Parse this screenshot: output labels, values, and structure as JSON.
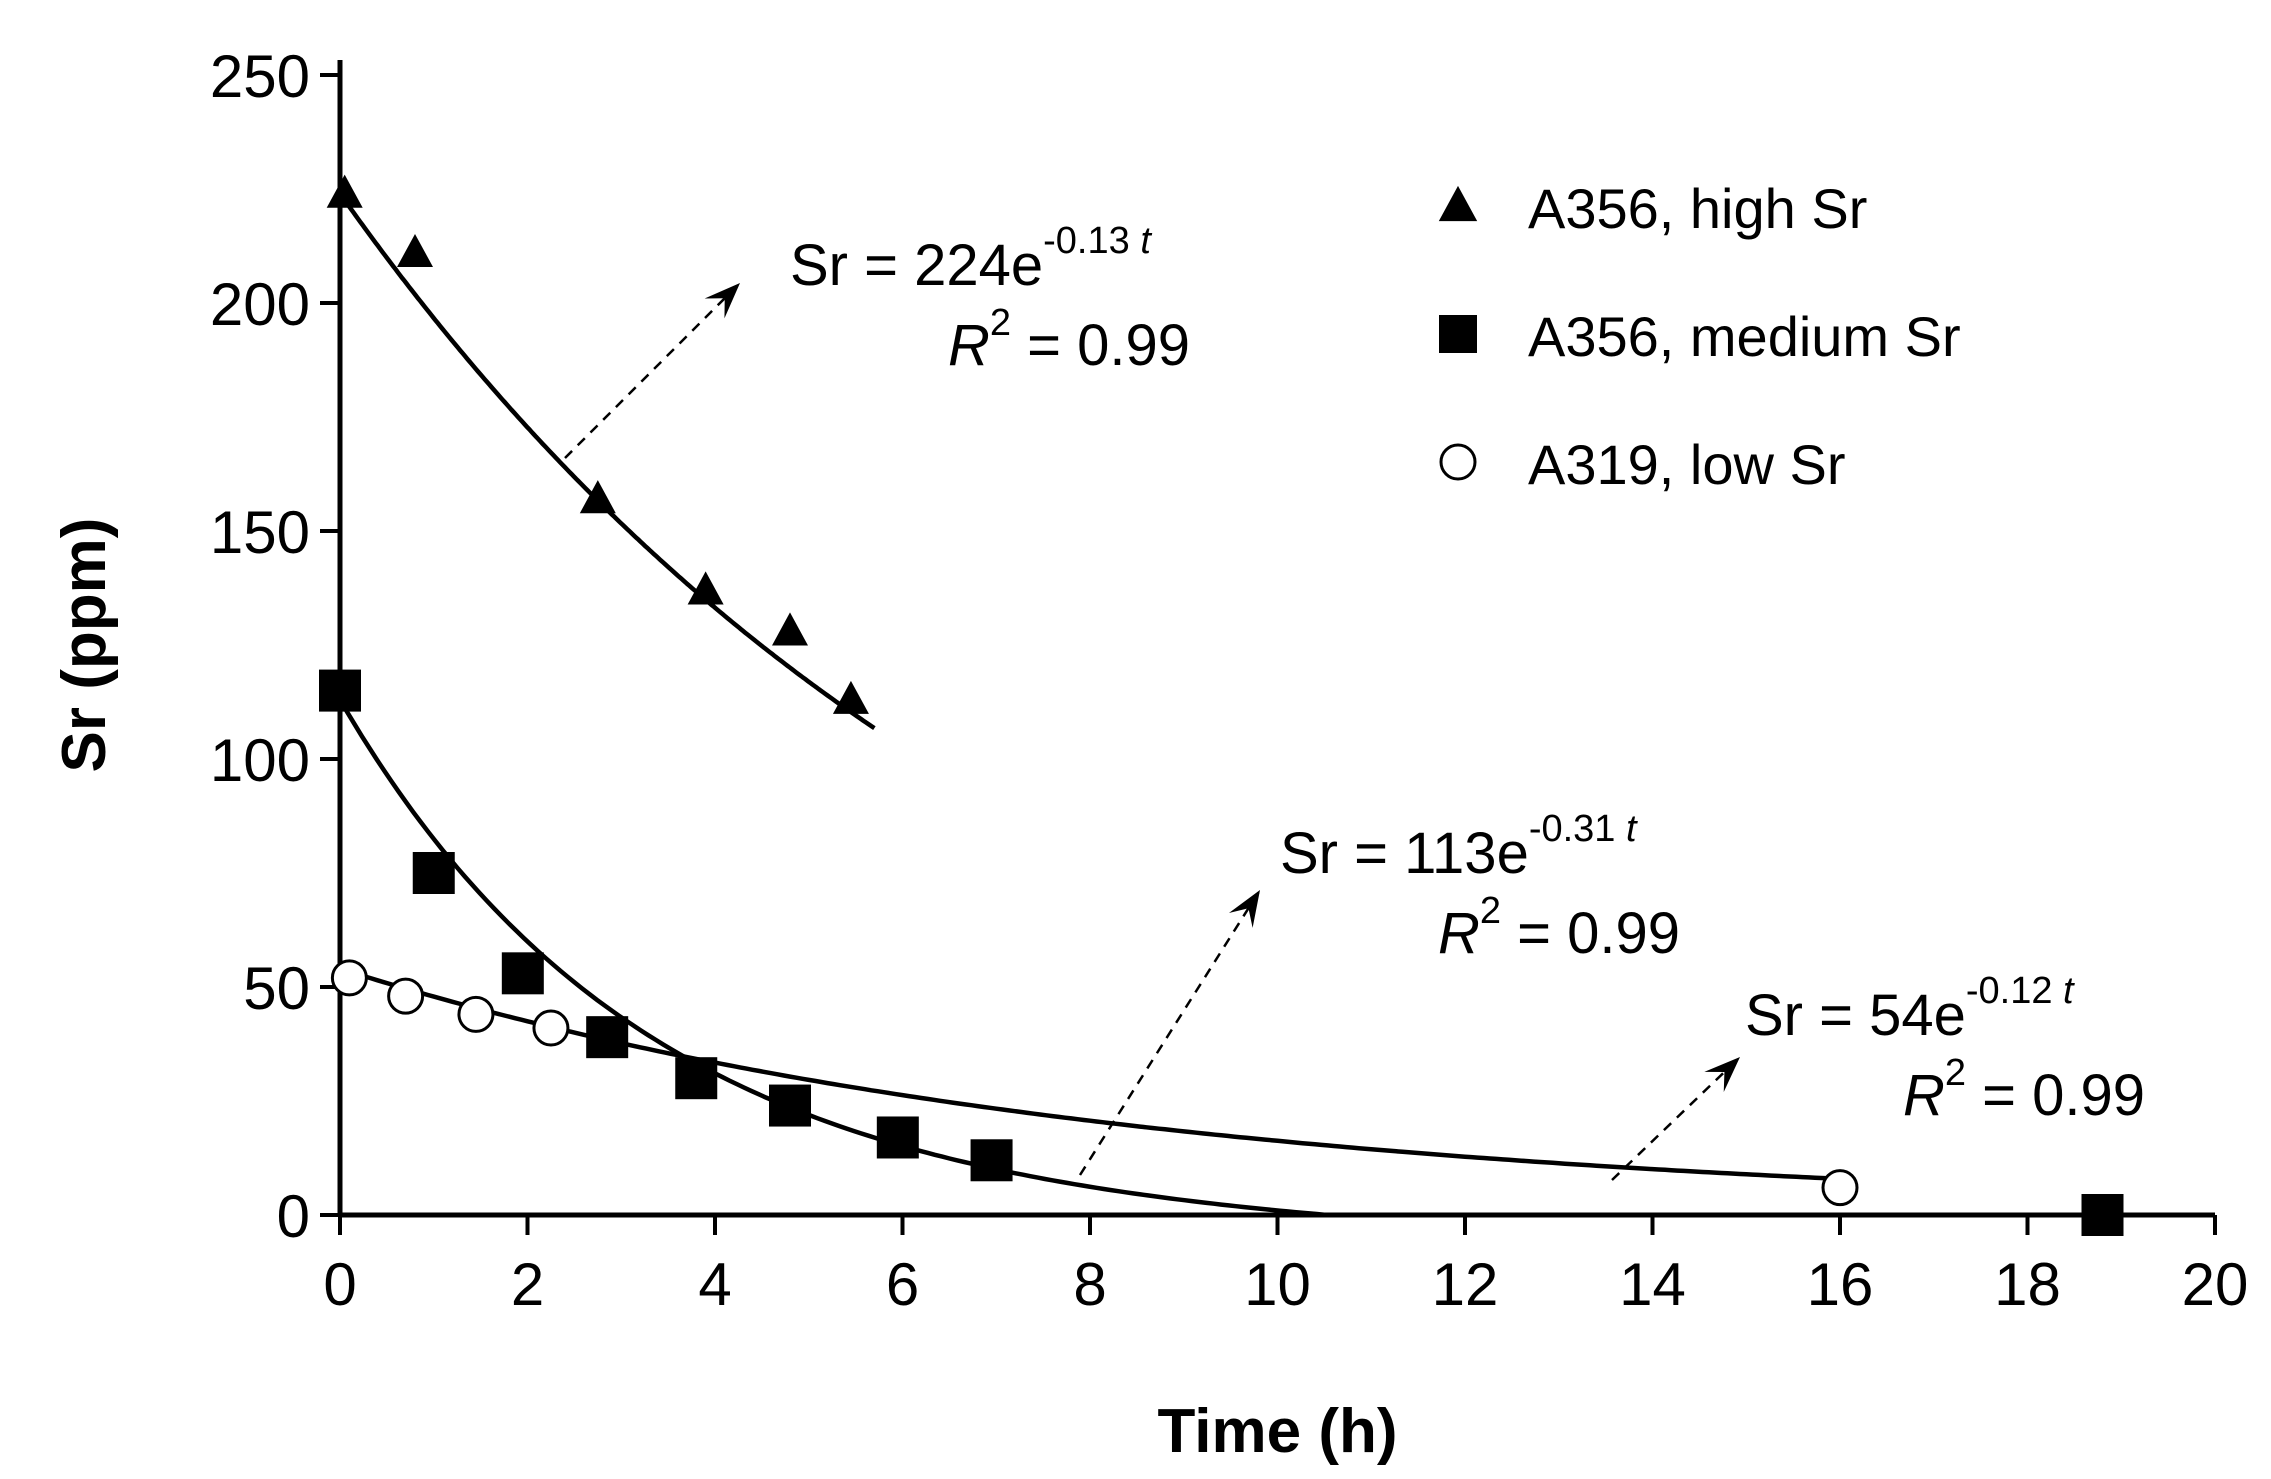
{
  "chart_data": {
    "type": "scatter",
    "title": "",
    "xlabel": "Time (h)",
    "ylabel": "Sr (ppm)",
    "xlim": [
      0,
      20
    ],
    "ylim": [
      0,
      250
    ],
    "xticks": [
      "0",
      "2",
      "4",
      "6",
      "8",
      "10",
      "12",
      "14",
      "16",
      "18",
      "20"
    ],
    "yticks": [
      "0",
      "50",
      "100",
      "150",
      "200",
      "250"
    ],
    "grid": false,
    "legend_position": "top-right",
    "series": [
      {
        "name": "A356, high Sr",
        "marker": "triangle-filled",
        "x": [
          0.05,
          0.8,
          2.75,
          3.9,
          4.8,
          5.45
        ],
        "y": [
          224,
          211,
          157,
          137,
          128,
          113
        ],
        "fit": {
          "a": 224,
          "k": 0.13,
          "t_range": [
            0,
            5.7
          ]
        },
        "equation": {
          "prefix": "Sr = 224e",
          "exponent": "-0.13",
          "var": "t",
          "r_label": "R",
          "r_sup": "2",
          "r_value": " = 0.99"
        }
      },
      {
        "name": "A356, medium Sr",
        "marker": "square-filled",
        "x": [
          0,
          1.0,
          1.95,
          2.85,
          3.8,
          4.8,
          5.95,
          6.95,
          18.8
        ],
        "y": [
          115,
          75,
          53,
          39,
          30,
          24,
          17,
          12,
          0
        ],
        "fit": {
          "a": 113,
          "k": 0.31,
          "t_range": [
            0,
            18.8
          ]
        },
        "equation": {
          "prefix": "Sr = 113e",
          "exponent": "-0.31",
          "var": "t",
          "r_label": "R",
          "r_sup": "2",
          "r_value": " = 0.99"
        }
      },
      {
        "name": "A319, low Sr",
        "marker": "circle-open",
        "x": [
          0.1,
          0.7,
          1.45,
          2.25,
          16.0
        ],
        "y": [
          52,
          48,
          44,
          41,
          6
        ],
        "fit": {
          "a": 54,
          "k": 0.12,
          "t_range": [
            0,
            16.0
          ]
        },
        "equation": {
          "prefix": "Sr = 54e",
          "exponent": "-0.12",
          "var": "t",
          "r_label": "R",
          "r_sup": "2",
          "r_value": " = 0.99"
        }
      }
    ]
  }
}
